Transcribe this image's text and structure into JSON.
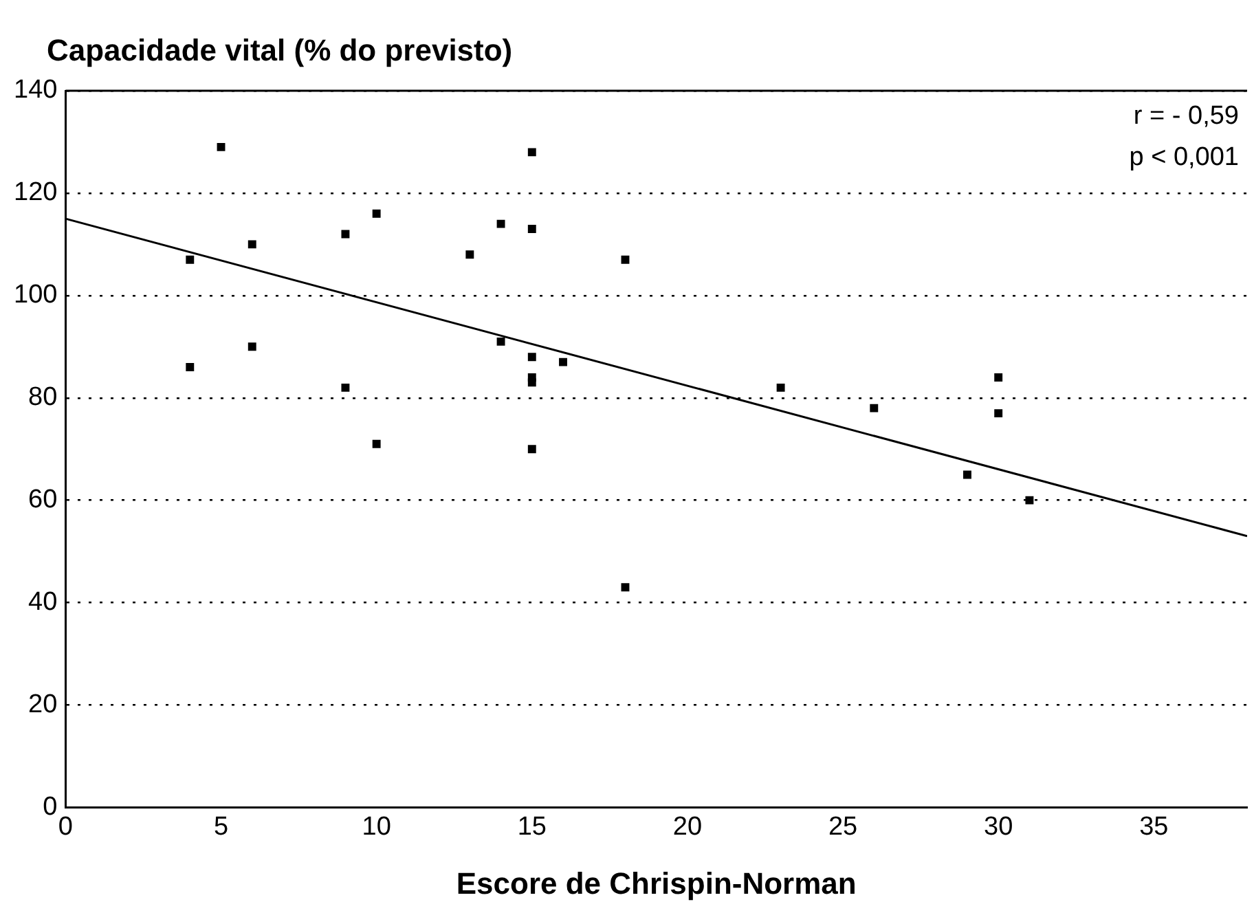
{
  "chart_data": {
    "type": "scatter",
    "ylabel": "Capacidade vital (% do previsto)",
    "xlabel": "Escore de Chrispin-Norman",
    "annotations": [
      "r = - 0,59",
      "p < 0,001"
    ],
    "xlim": [
      0,
      38
    ],
    "xticks": [
      0,
      5,
      10,
      15,
      20,
      25,
      30,
      35
    ],
    "ylim": [
      0,
      140
    ],
    "yticks": [
      0,
      20,
      40,
      60,
      80,
      100,
      120,
      140
    ],
    "grid": "y",
    "legend": false,
    "marker": "square",
    "series": [
      {
        "type": "scatter",
        "color": "#000000",
        "x": [
          4,
          4,
          5,
          6,
          6,
          9,
          9,
          10,
          10,
          13,
          14,
          14,
          15,
          15,
          15,
          15,
          15,
          15,
          16,
          18,
          18,
          23,
          26,
          29,
          30,
          30,
          31
        ],
        "values": [
          107,
          86,
          129,
          110,
          90,
          112,
          82,
          116,
          71,
          108,
          114,
          91,
          128,
          113,
          88,
          84,
          83,
          70,
          87,
          107,
          43,
          82,
          78,
          65,
          84,
          77,
          60
        ]
      },
      {
        "type": "line",
        "color": "#000000",
        "x": [
          0,
          38
        ],
        "values": [
          115,
          53
        ],
        "marker": "none"
      }
    ]
  }
}
